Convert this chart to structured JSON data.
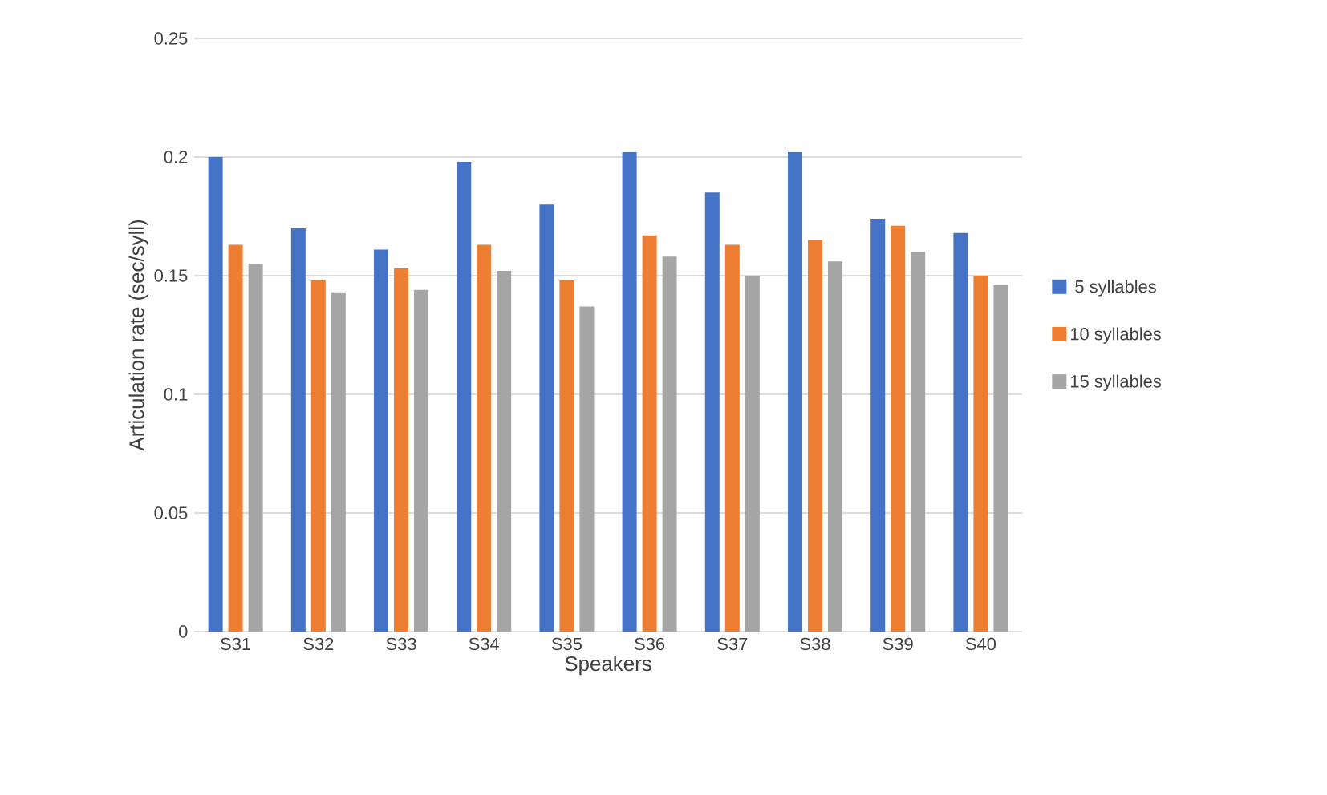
{
  "chart_data": {
    "type": "bar",
    "xlabel": "Speakers",
    "ylabel": "Articulation rate (sec/syll)",
    "categories": [
      "S31",
      "S32",
      "S33",
      "S34",
      "S35",
      "S36",
      "S37",
      "S38",
      "S39",
      "S40"
    ],
    "series": [
      {
        "name": "5 syllables",
        "color": "#4472c4",
        "values": [
          0.2,
          0.17,
          0.161,
          0.198,
          0.18,
          0.202,
          0.185,
          0.202,
          0.174,
          0.168
        ]
      },
      {
        "name": "10 syllables",
        "color": "#ed7d31",
        "values": [
          0.163,
          0.148,
          0.153,
          0.163,
          0.148,
          0.167,
          0.163,
          0.165,
          0.171,
          0.15
        ]
      },
      {
        "name": "15 syllables",
        "color": "#a5a5a5",
        "values": [
          0.155,
          0.143,
          0.144,
          0.152,
          0.137,
          0.158,
          0.15,
          0.156,
          0.16,
          0.146
        ]
      }
    ],
    "ylim": [
      0,
      0.25
    ],
    "yticks": [
      0,
      0.05,
      0.1,
      0.15,
      0.2,
      0.25
    ],
    "grid": "y",
    "legend": "right"
  }
}
